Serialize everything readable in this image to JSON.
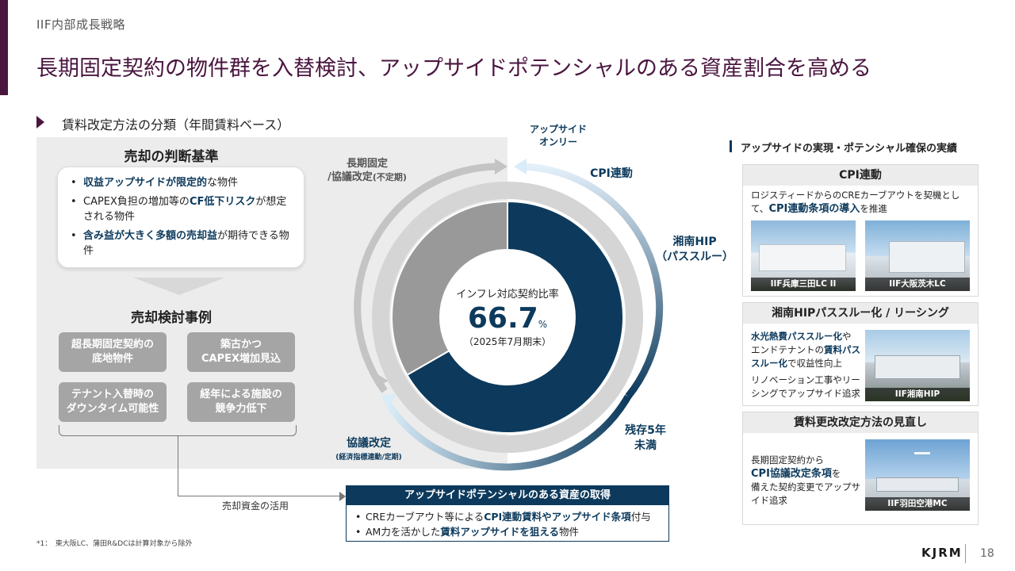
{
  "header": {
    "section_label": "IIF内部成長戦略",
    "title": "長期固定契約の物件群を入替検討、アップサイドポテンシャルのある資産割合を高める"
  },
  "subheading": "賃料改定方法の分類（年間賃料ベース）",
  "sale_criteria": {
    "title": "売却の判断基準",
    "items": [
      {
        "pre": "",
        "highlight": "収益アップサイドが限定的",
        "post": "な物件"
      },
      {
        "pre": "CAPEX負担の増加等の",
        "highlight": "CF低下リスク",
        "post": "が想定される物件"
      },
      {
        "pre": "",
        "highlight": "含み益が大きく多額の売却益",
        "post": "が期待できる物件"
      }
    ]
  },
  "sale_cases": {
    "title": "売却検討事例",
    "cases": [
      {
        "line1": "超長期固定契約の",
        "line2": "底地物件"
      },
      {
        "line1": "築古かつ",
        "line2": "CAPEX増加見込"
      },
      {
        "line1": "テナント入替時の",
        "line2": "ダウンタイム可能性"
      },
      {
        "line1": "経年による施設の",
        "line2": "競争力低下"
      }
    ]
  },
  "funds_label": "売却資金の活用",
  "acquisition": {
    "title": "アップサイドポテンシャルのある資産の取得",
    "items": [
      {
        "pre": "CREカーブアウト等による",
        "highlight": "CPI連動賃料やアップサイド条項",
        "post": "付与"
      },
      {
        "pre": "AM力を活かした",
        "highlight": "賃料アップサイドを狙える",
        "post": "物件"
      }
    ]
  },
  "donut": {
    "center_label": "インフレ対応契約比率",
    "center_value": "66.7",
    "center_unit": "%",
    "center_note": "（2025年7月期末）",
    "labels": {
      "long_fixed_1": "長期固定",
      "long_fixed_2": "/協議改定",
      "long_fixed_3": "(不定期)",
      "upside_only_1": "アップサイド",
      "upside_only_2": "オンリー",
      "cpi": "CPI連動",
      "shonan_1": "湘南HIP",
      "shonan_2": "（パススルー）",
      "remaining_1": "残存5年",
      "remaining_2": "未満",
      "negotiated": "協議改定",
      "negotiated_sub": "(経済指標連動/定期)"
    },
    "segments": [
      {
        "name": "inflation-linked",
        "share": 66.7,
        "color": "#0d3a5c"
      },
      {
        "name": "long-fixed",
        "share": 33.3,
        "color": "#999999"
      }
    ]
  },
  "right_panel": {
    "title": "アップサイドの実現・ポテンシャル確保の実績",
    "cpi_card": {
      "head": "CPI連動",
      "text_pre": "ロジスティードからのCREカーブアウトを契機として、",
      "text_hl": "CPI連動条項の導入",
      "text_post": "を推進",
      "photo1": "IIF兵庫三田LC II",
      "photo2": "IIF大阪茨木LC"
    },
    "shonan_card": {
      "head": "湘南HIPパススルー化 / リーシング",
      "hl1": "水光熱費パススルー化",
      "t1": "や",
      "t2": "エンドテナントの",
      "hl2": "賃料パス",
      "hl3": "スルー化",
      "t3": "で収益性向上",
      "t4": "リノベーション工事やリーシングでアップサイド追求",
      "photo": "IIF湘南HIP"
    },
    "revision_card": {
      "head": "賃料更改改定方法の見直し",
      "t1": "長期固定契約から",
      "hl": "CPI協議改定条項",
      "t2": "を",
      "t3": "備えた契約変更でアップサイド追求",
      "photo": "IIF羽田空港MC"
    }
  },
  "footnote": "*1：　東大阪LC、蒲田R&DCは計算対象から除外",
  "logo": "KJRM",
  "page_number": "18",
  "colors": {
    "accent": "#4a1640",
    "navy": "#0d3a5c",
    "gray_panel": "#ececec"
  }
}
